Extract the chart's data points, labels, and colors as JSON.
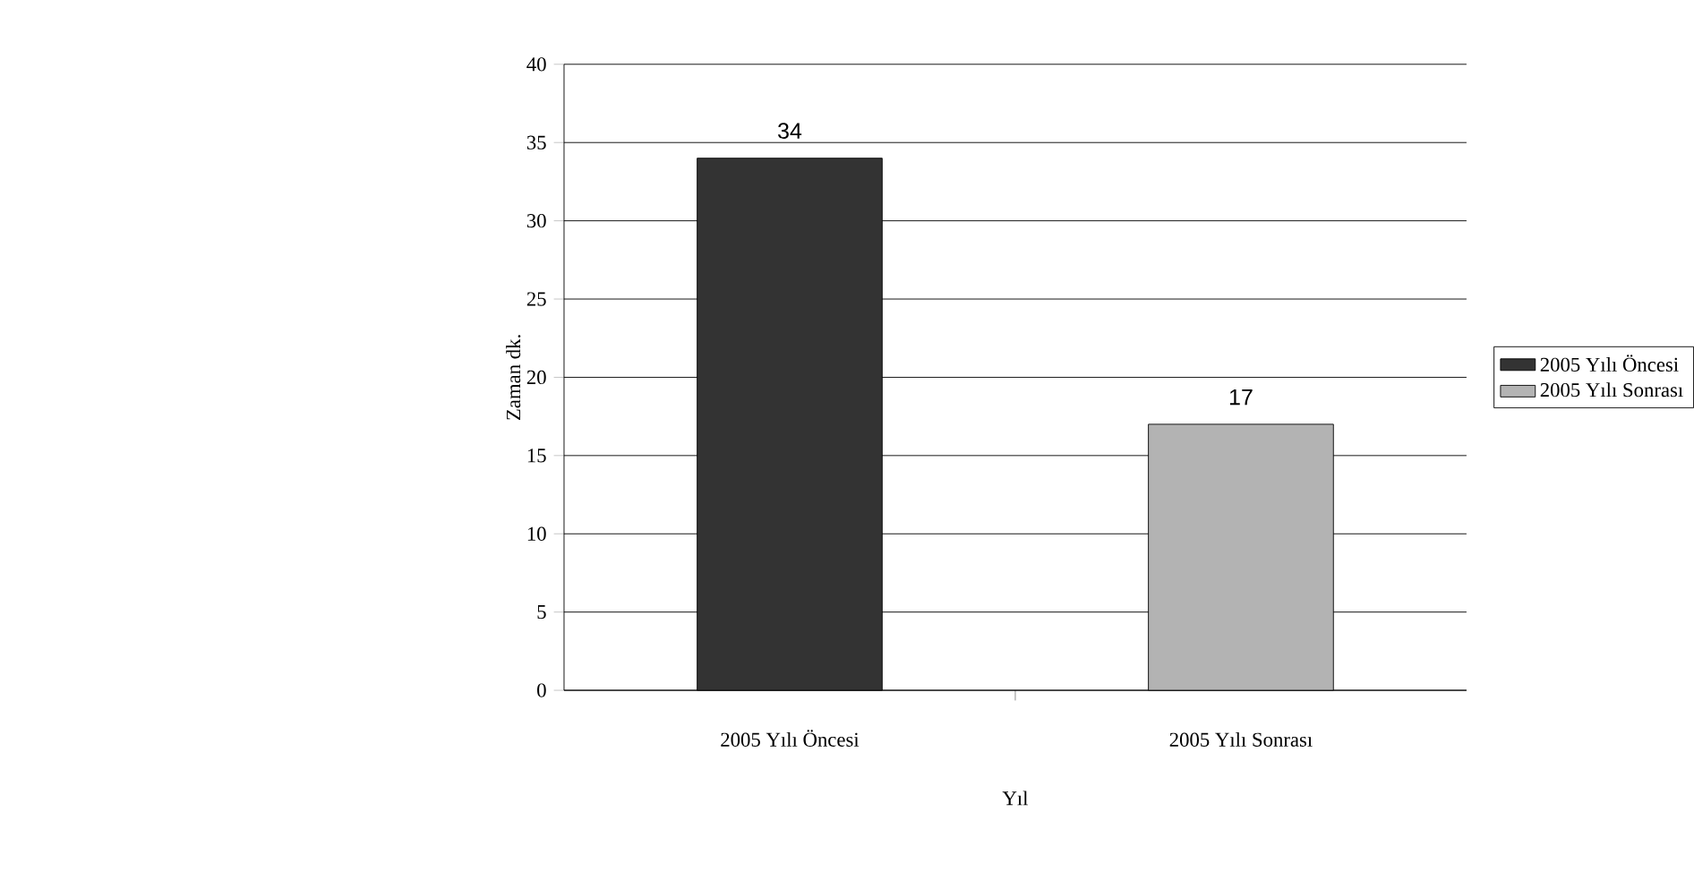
{
  "chart_data": {
    "type": "bar",
    "xlabel": "Yıl",
    "ylabel": "Zaman dk.",
    "categories": [
      "2005 Yılı Öncesi",
      "2005 Yılı Sonrası"
    ],
    "series": [
      {
        "name": "2005 Yılı Öncesi",
        "color": "#333333",
        "values": [
          34,
          null
        ]
      },
      {
        "name": "2005 Yılı Sonrası",
        "color": "#b3b3b3",
        "values": [
          null,
          17
        ]
      }
    ],
    "ylim": [
      0,
      40
    ],
    "yticks": [
      0,
      5,
      10,
      15,
      20,
      25,
      30,
      35,
      40
    ],
    "grid": "y",
    "legend": "right",
    "data_labels": true
  }
}
